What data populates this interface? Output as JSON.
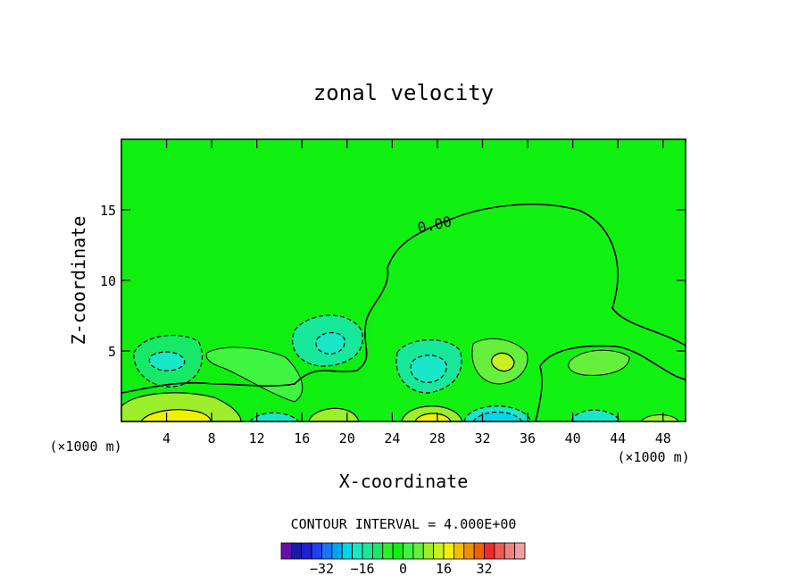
{
  "chart_data": {
    "type": "heatmap",
    "title": "zonal velocity",
    "xlabel": "X-coordinate",
    "ylabel": "Z-coordinate",
    "x_unit_left": "(×1000 m)",
    "x_unit_right": "(×1000 m)",
    "xlim": [
      0,
      50
    ],
    "ylim": [
      0,
      20
    ],
    "x_ticks": [
      4,
      8,
      12,
      16,
      20,
      24,
      28,
      32,
      36,
      40,
      44,
      48
    ],
    "y_ticks": [
      5,
      10,
      15
    ],
    "zero_contour_label": "0.00",
    "contour_interval_text": "CONTOUR INTERVAL = 4.000E+00",
    "colorbar": {
      "colors": [
        "#6a0dad",
        "#1a1aa8",
        "#2020d0",
        "#1f3ff0",
        "#1a75f0",
        "#00a5f0",
        "#00d8e8",
        "#19e8c8",
        "#18e89a",
        "#18e868",
        "#2bf02b",
        "#10f010",
        "#3ff53f",
        "#66f03c",
        "#9cef2a",
        "#c9f023",
        "#f0f000",
        "#f0c000",
        "#f09000",
        "#f06000",
        "#f02a2a",
        "#f05a50",
        "#f08080",
        "#f0a0a0"
      ],
      "tick_labels": [
        "-32",
        "-16",
        "0",
        "16",
        "32"
      ],
      "tick_values": [
        -32,
        -16,
        0,
        16,
        32
      ],
      "range": [
        -48,
        48
      ]
    },
    "background_level": 0,
    "features": [
      {
        "x": 5.5,
        "z": 0.6,
        "level": 12,
        "sign": "positive"
      },
      {
        "x": 4.5,
        "z": 4.6,
        "level": -6,
        "sign": "negative"
      },
      {
        "x": 18.5,
        "z": 6.0,
        "level": -6,
        "sign": "negative"
      },
      {
        "x": 27.5,
        "z": 3.8,
        "level": -8,
        "sign": "negative"
      },
      {
        "x": 33.0,
        "z": 4.5,
        "level": 8,
        "sign": "positive"
      },
      {
        "x": 33.0,
        "z": 0.5,
        "level": -12,
        "sign": "negative"
      },
      {
        "x": 42.5,
        "z": 4.2,
        "level": 4,
        "sign": "positive"
      },
      {
        "x": 41.5,
        "z": 0.4,
        "level": -8,
        "sign": "negative"
      },
      {
        "x": 27.0,
        "z": 0.5,
        "level": 8,
        "sign": "positive"
      },
      {
        "x": 18.0,
        "z": 0.6,
        "level": 8,
        "sign": "positive"
      }
    ]
  }
}
